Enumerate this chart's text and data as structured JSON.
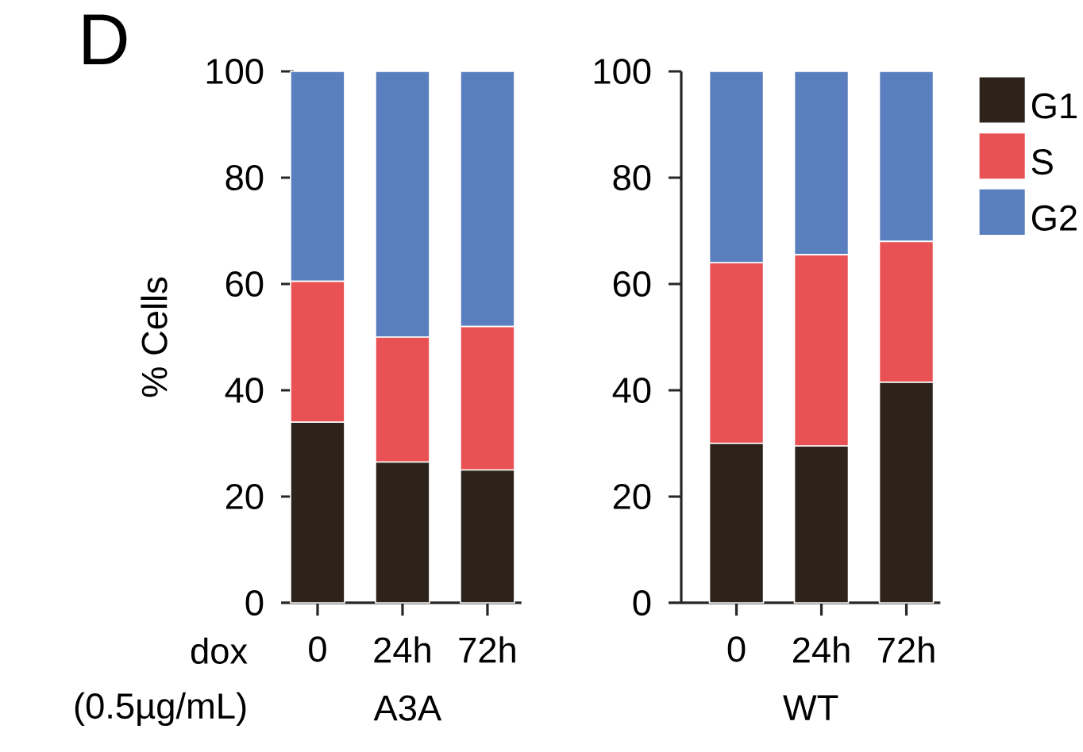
{
  "chart_data": [
    {
      "type": "bar",
      "stacked": true,
      "categories": [
        "0",
        "24h",
        "72h"
      ],
      "xlabel": "A3A",
      "ylabel": "% Cells",
      "ylim": [
        0,
        100
      ],
      "yticks": [
        0,
        20,
        40,
        60,
        80,
        100
      ],
      "series": [
        {
          "color": "#2d231a",
          "values": [
            34,
            26.5,
            25
          ]
        },
        {
          "color": "#e95254",
          "values": [
            26.5,
            23.5,
            27
          ]
        },
        {
          "color": "#5a7fbe",
          "values": [
            39.5,
            50,
            48
          ]
        }
      ],
      "annotations": [
        "D",
        "dox",
        "(0.5µg/mL)"
      ]
    },
    {
      "type": "bar",
      "stacked": true,
      "categories": [
        "0",
        "24h",
        "72h"
      ],
      "xlabel": "WT",
      "ylim": [
        0,
        100
      ],
      "yticks": [
        0,
        20,
        40,
        60,
        80,
        100
      ],
      "legend": "right",
      "series": [
        {
          "name": "G1",
          "color": "#2d231a",
          "values": [
            30,
            29.5,
            41.5
          ]
        },
        {
          "name": "S",
          "color": "#e95254",
          "values": [
            34,
            36,
            26.5
          ]
        },
        {
          "name": "G2",
          "color": "#5a7fbe",
          "values": [
            36,
            34.5,
            32
          ]
        }
      ]
    }
  ]
}
